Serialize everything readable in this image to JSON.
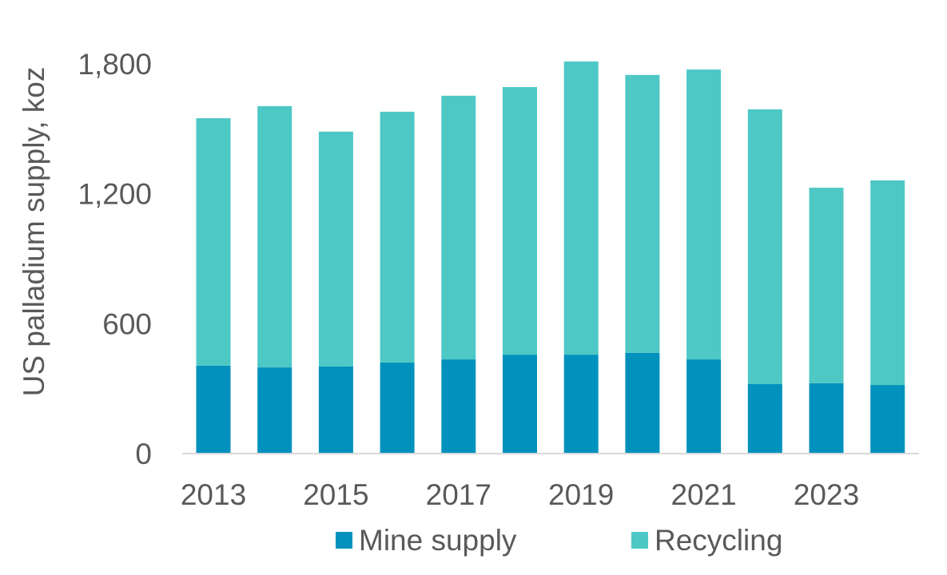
{
  "chart_data": {
    "type": "bar",
    "stacked": true,
    "title": "",
    "xlabel": "",
    "ylabel": "US palladium supply, koz",
    "ylim": [
      0,
      1800
    ],
    "yticks": [
      0,
      600,
      1200,
      1800
    ],
    "ytick_labels": [
      "0",
      "600",
      "1,200",
      "1,800"
    ],
    "categories": [
      "2013",
      "2014",
      "2015",
      "2016",
      "2017",
      "2018",
      "2019",
      "2020",
      "2021",
      "2022",
      "2023",
      "2024"
    ],
    "xtick_labels": [
      "2013",
      "",
      "2015",
      "",
      "2017",
      "",
      "2019",
      "",
      "2021",
      "",
      "2023",
      ""
    ],
    "series": [
      {
        "name": "Mine supply",
        "color": "#0091BD",
        "values": [
          406,
          398,
          402,
          421,
          435,
          457,
          457,
          465,
          435,
          321,
          325,
          317
        ]
      },
      {
        "name": "Recycling",
        "color": "#4EC8C5",
        "values": [
          1143,
          1207,
          1085,
          1158,
          1218,
          1236,
          1354,
          1284,
          1339,
          1269,
          903,
          945
        ]
      }
    ],
    "grid": false,
    "legend_position": "bottom"
  }
}
